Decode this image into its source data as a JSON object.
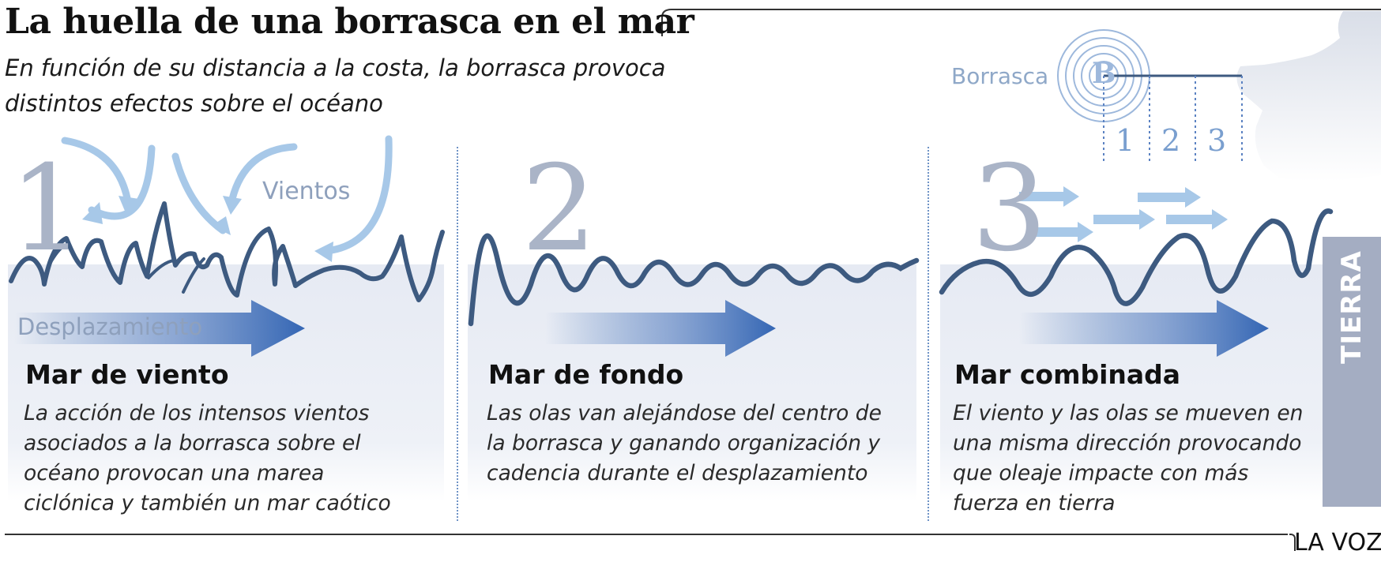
{
  "title": "La huella de una borrasca en el mar",
  "subtitle": "En función de su distancia a la costa, la borrasca provoca distintos efectos sobre el océano",
  "map": {
    "storm_label": "Borrasca",
    "storm_symbol": "B",
    "distance_marks": [
      "1",
      "2",
      "3"
    ]
  },
  "labels": {
    "winds": "Vientos",
    "displacement": "Desplazamiento",
    "land": "TIERRA"
  },
  "panels": [
    {
      "number": "1",
      "title": "Mar de viento",
      "text": "La acción de los intensos vientos asociados a la borrasca sobre el océano provocan una marea ciclónica y también un mar caótico"
    },
    {
      "number": "2",
      "title": "Mar de fondo",
      "text": "Las olas van alejándose del centro de la borrasca y ganando organización y cadencia durante el desplazamiento"
    },
    {
      "number": "3",
      "title": "Mar combinada",
      "text": "El viento y las olas se mueven en una misma dirección provocando que oleaje impacte con más fuerza en tierra"
    }
  ],
  "brand": "LA VOZ",
  "colors": {
    "wave": "#3d5a80",
    "wind_arrow": "#a7c8e8",
    "flow_arrow": "#3f6fb5",
    "panel_bg": "#e8ecf4",
    "land_bar": "#a4adc2",
    "number": "#aab4c7"
  }
}
